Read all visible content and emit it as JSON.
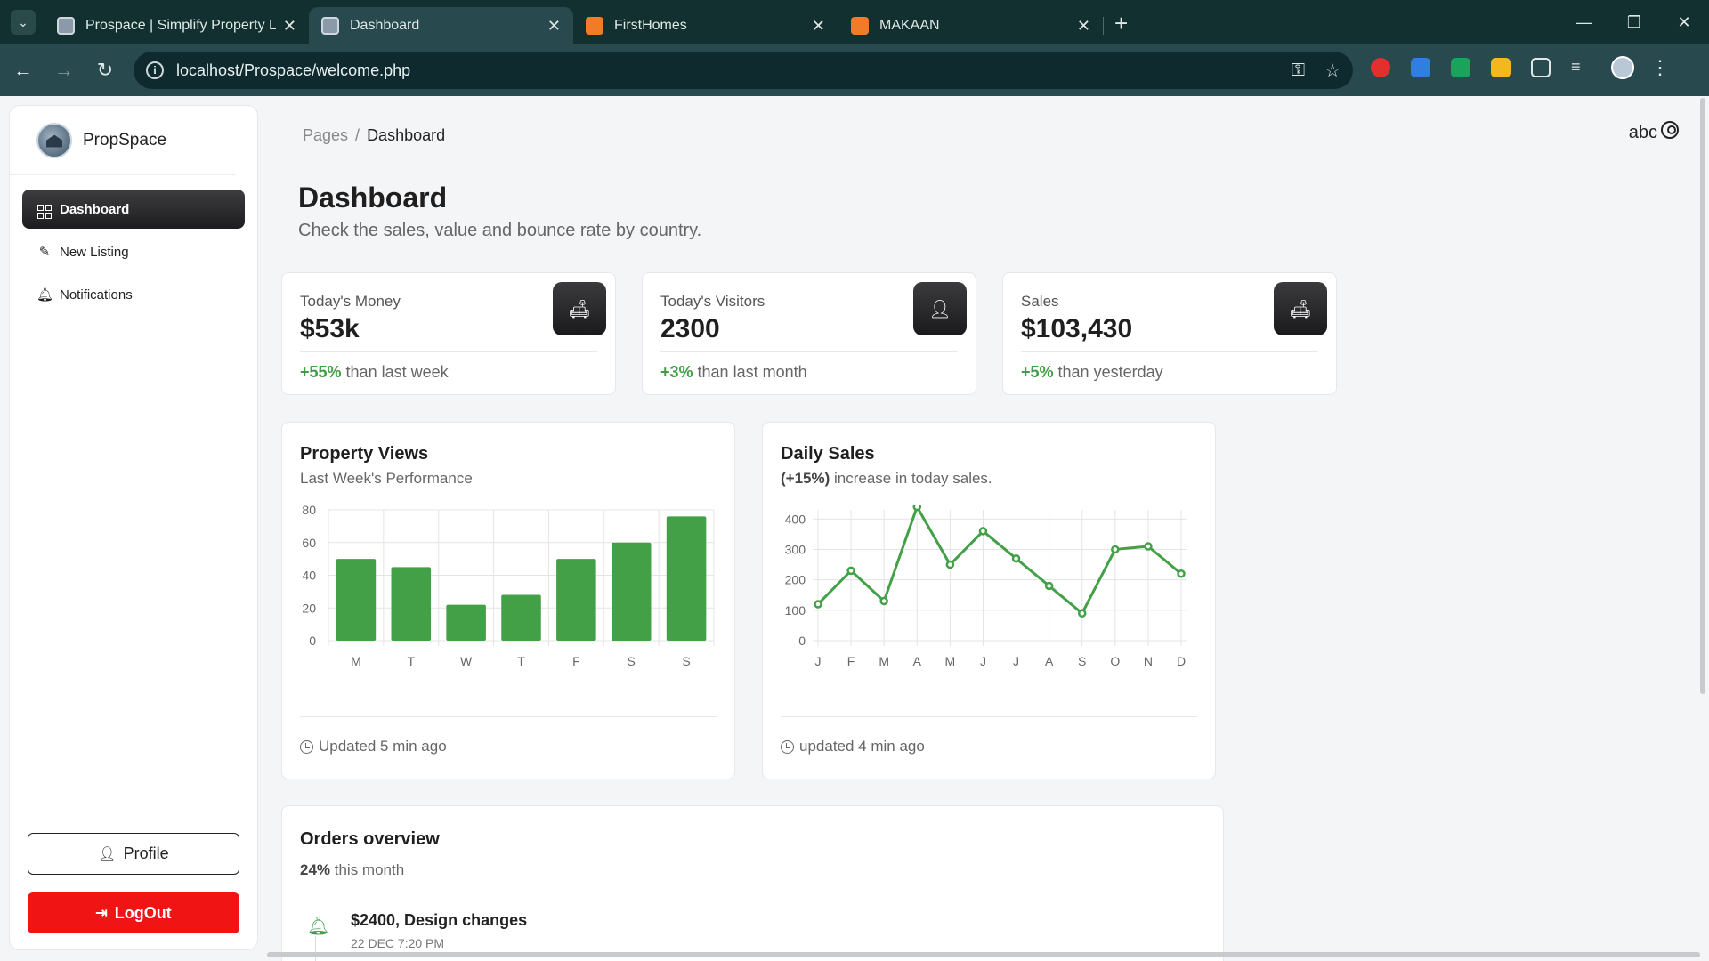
{
  "browser": {
    "tabs": [
      {
        "title": "Prospace | Simplify Property Lis",
        "favicon": "propspace-favicon",
        "active": false
      },
      {
        "title": "Dashboard",
        "favicon": "propspace-favicon",
        "active": true
      },
      {
        "title": "FirstHomes",
        "favicon": "xampp-favicon",
        "active": false
      },
      {
        "title": "MAKAAN",
        "favicon": "xampp-favicon",
        "active": false
      }
    ],
    "url": "localhost/Prospace/welcome.php"
  },
  "sidebar": {
    "brand": "PropSpace",
    "items": [
      {
        "label": "Dashboard",
        "icon": "dashboard-grid-icon",
        "active": true
      },
      {
        "label": "New Listing",
        "icon": "pencil-icon",
        "active": false
      },
      {
        "label": "Notifications",
        "icon": "bell-icon",
        "active": false
      }
    ],
    "profile_label": "Profile",
    "logout_label": "LogOut"
  },
  "header": {
    "breadcrumb_root": "Pages",
    "breadcrumb_sep": "/",
    "breadcrumb_current": "Dashboard",
    "username": "abc"
  },
  "main": {
    "title": "Dashboard",
    "subtitle": "Check the sales, value and bounce rate by country.",
    "stats": [
      {
        "label": "Today's Money",
        "value": "$53k",
        "change": "+55%",
        "suffix": " than last week",
        "icon": "sofa-icon"
      },
      {
        "label": "Today's Visitors",
        "value": "2300",
        "change": "+3%",
        "suffix": " than last month",
        "icon": "user-icon"
      },
      {
        "label": "Sales",
        "value": "$103,430",
        "change": "+5%",
        "suffix": " than yesterday",
        "icon": "sofa-icon"
      }
    ],
    "property_views": {
      "title": "Property Views",
      "subtitle": "Last Week's Performance",
      "footer": "Updated 5 min ago"
    },
    "daily_sales": {
      "title": "Daily Sales",
      "subtitle_bold": "(+15%)",
      "subtitle_rest": " increase in today sales.",
      "footer": "updated 4 min ago"
    },
    "orders": {
      "title": "Orders overview",
      "subtitle_bold": "24%",
      "subtitle_rest": " this month",
      "item_title": "$2400, Design changes",
      "item_time": "22 DEC 7:20 PM"
    }
  },
  "colors": {
    "accent_green": "#43a047",
    "logout_red": "#f01414",
    "dark": "#1a1a1c"
  },
  "chart_data": [
    {
      "type": "bar",
      "categories": [
        "M",
        "T",
        "W",
        "T",
        "F",
        "S",
        "S"
      ],
      "values": [
        50,
        45,
        22,
        28,
        50,
        60,
        76
      ],
      "ylim": [
        0,
        80
      ],
      "yticks": [
        0,
        20,
        40,
        60,
        80
      ],
      "grid": true
    },
    {
      "type": "line",
      "categories": [
        "J",
        "F",
        "M",
        "A",
        "M",
        "J",
        "J",
        "A",
        "S",
        "O",
        "N",
        "D"
      ],
      "values": [
        120,
        230,
        130,
        440,
        250,
        360,
        270,
        180,
        90,
        300,
        310,
        220
      ],
      "ylim": [
        0,
        430
      ],
      "yticks": [
        0,
        100,
        200,
        300,
        400
      ],
      "grid": true
    }
  ]
}
